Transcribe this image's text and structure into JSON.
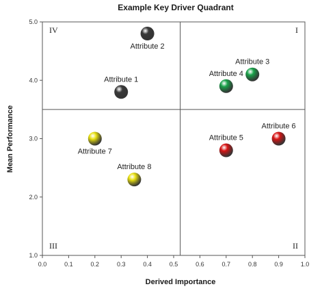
{
  "chart_data": {
    "type": "scatter",
    "title": "Example Key Driver Quadrant",
    "xlabel": "Derived Importance",
    "ylabel": "Mean Performance",
    "xlim": [
      0.0,
      1.0
    ],
    "ylim": [
      1.0,
      5.0
    ],
    "x_ticks": [
      "0.0",
      "0.1",
      "0.2",
      "0.3",
      "0.4",
      "0.5",
      "0.6",
      "0.7",
      "0.8",
      "0.9",
      "1.0"
    ],
    "y_ticks": [
      "1.0",
      "2.0",
      "3.0",
      "4.0",
      "5.0"
    ],
    "grid": false,
    "quadrant_divider": {
      "x": 0.525,
      "y": 3.5
    },
    "quadrant_labels": [
      {
        "text": "IV",
        "corner": "top-left"
      },
      {
        "text": "I",
        "corner": "top-right"
      },
      {
        "text": "III",
        "corner": "bottom-left"
      },
      {
        "text": "II",
        "corner": "bottom-right"
      }
    ],
    "points": [
      {
        "label": "Attribute 1",
        "x": 0.3,
        "y": 3.8,
        "color": "#3a3a3a",
        "label_pos": "above"
      },
      {
        "label": "Attribute 2",
        "x": 0.4,
        "y": 4.8,
        "color": "#3a3a3a",
        "label_pos": "below"
      },
      {
        "label": "Attribute 3",
        "x": 0.8,
        "y": 4.1,
        "color": "#1aa34a",
        "label_pos": "above"
      },
      {
        "label": "Attribute 4",
        "x": 0.7,
        "y": 3.9,
        "color": "#1aa34a",
        "label_pos": "above"
      },
      {
        "label": "Attribute 5",
        "x": 0.7,
        "y": 2.8,
        "color": "#d91515",
        "label_pos": "above"
      },
      {
        "label": "Attribute 6",
        "x": 0.9,
        "y": 3.0,
        "color": "#d91515",
        "label_pos": "above"
      },
      {
        "label": "Attribute 7",
        "x": 0.2,
        "y": 3.0,
        "color": "#e8e010",
        "label_pos": "below"
      },
      {
        "label": "Attribute 8",
        "x": 0.35,
        "y": 2.3,
        "color": "#e8e010",
        "label_pos": "above"
      }
    ]
  }
}
